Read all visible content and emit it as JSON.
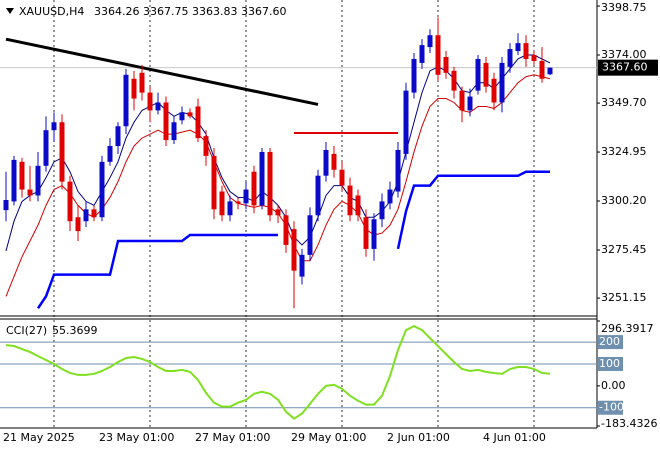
{
  "chart_data": [
    {
      "type": "candlestick",
      "title": "XAUUSD,H4",
      "subtitle": "3364.26 3367.75 3363.83 3367.60",
      "categories": [
        "21 May 2025",
        null,
        null,
        null,
        null,
        null,
        null,
        null,
        null,
        null,
        null,
        null,
        "23 May 01:00",
        null,
        null,
        null,
        null,
        null,
        null,
        null,
        null,
        null,
        null,
        null,
        "27 May 01:00",
        null,
        null,
        null,
        null,
        null,
        null,
        null,
        null,
        null,
        null,
        null,
        "29 May 01:00",
        null,
        null,
        null,
        null,
        null,
        null,
        null,
        null,
        null,
        null,
        null,
        "2 Jun 01:00",
        null,
        null,
        null,
        null,
        null,
        null,
        null,
        null,
        null,
        null,
        null,
        "4 Jun 01:00",
        null,
        null,
        null,
        null,
        null,
        null,
        null,
        null
      ],
      "open": [
        3295.6,
        3300,
        3320,
        3306,
        3303,
        3318,
        3336,
        3340,
        3310,
        3292,
        3290,
        3296,
        3292,
        3320,
        3328,
        3338,
        3362,
        3365,
        3355,
        3346,
        3350,
        3331,
        3341,
        3345,
        3348,
        3333,
        3323,
        3305,
        3293,
        3300,
        3299,
        3315,
        3298,
        3325,
        3296,
        3293,
        3286,
        3262,
        3273,
        3293,
        3313,
        3324,
        3316,
        3308,
        3303,
        3292,
        3276,
        3291,
        3299,
        3305,
        3324,
        3355,
        3370,
        3378,
        3384,
        3373,
        3366,
        3356,
        3346,
        3356,
        3370,
        3362,
        3350,
        3368,
        3376,
        3380,
        3374,
        3371,
        3364.26
      ],
      "high": [
        3315,
        3323,
        3322,
        3318,
        3325,
        3343,
        3345,
        3344,
        3313,
        3298,
        3300,
        3298,
        3323,
        3332,
        3340,
        3367,
        3366,
        3369,
        3358,
        3355,
        3353,
        3343,
        3348,
        3347,
        3352,
        3336,
        3327,
        3308,
        3303,
        3302,
        3310,
        3318,
        3327,
        3327,
        3298,
        3296,
        3290,
        3276,
        3297,
        3316,
        3330,
        3328,
        3320,
        3312,
        3306,
        3296,
        3294,
        3304,
        3310,
        3330,
        3360,
        3375,
        3382,
        3387,
        3393,
        3376,
        3368,
        3358,
        3357,
        3374,
        3373,
        3365,
        3373,
        3380,
        3385,
        3384,
        3376,
        3378,
        3367.75
      ],
      "low": [
        3290,
        3298,
        3302,
        3300,
        3300,
        3315,
        3330,
        3306,
        3285,
        3280,
        3287,
        3290,
        3290,
        3318,
        3324,
        3334,
        3346,
        3351,
        3340,
        3344,
        3328,
        3329,
        3339,
        3342,
        3330,
        3318,
        3291,
        3290,
        3290,
        3296,
        3296,
        3294,
        3296,
        3290,
        3289,
        3274,
        3246,
        3258,
        3270,
        3290,
        3310,
        3312,
        3305,
        3290,
        3290,
        3272,
        3270,
        3287,
        3296,
        3302,
        3321,
        3352,
        3367,
        3375,
        3361,
        3362,
        3352,
        3340,
        3343,
        3354,
        3355,
        3346,
        3345,
        3365,
        3374,
        3368,
        3369,
        3360,
        3363.83
      ],
      "close": [
        3300.7,
        3321,
        3306,
        3303,
        3318,
        3336,
        3340,
        3310,
        3290,
        3285,
        3296,
        3292,
        3320,
        3328,
        3338,
        3364,
        3352,
        3355,
        3346,
        3350,
        3331,
        3340,
        3345,
        3343,
        3332,
        3323,
        3296,
        3293,
        3300,
        3299,
        3306,
        3298,
        3325,
        3293,
        3293,
        3278,
        3265,
        3273,
        3293,
        3313,
        3326,
        3316,
        3308,
        3293,
        3293,
        3276,
        3291,
        3300,
        3306,
        3326,
        3356,
        3372,
        3379,
        3384,
        3364,
        3365,
        3356,
        3346,
        3353,
        3372,
        3358,
        3350,
        3370,
        3377,
        3380,
        3372,
        3371,
        3362,
        3367.6
      ],
      "up_color": "#0a0ac8",
      "down_color": "#e00000",
      "series": [
        {
          "color": "#000080",
          "values": [
            3275,
            3290,
            3300,
            3303,
            3305,
            3312,
            3320,
            3322,
            3315,
            3305,
            3300,
            3298,
            3305,
            3312,
            3320,
            3332,
            3340,
            3346,
            3348,
            3350,
            3346,
            3343,
            3345,
            3344,
            3340,
            3334,
            3322,
            3312,
            3305,
            3302,
            3302,
            3300,
            3305,
            3302,
            3298,
            3292,
            3282,
            3278,
            3282,
            3292,
            3303,
            3308,
            3308,
            3302,
            3300,
            3292,
            3292,
            3295,
            3300,
            3310,
            3325,
            3340,
            3355,
            3366,
            3368,
            3366,
            3362,
            3356,
            3355,
            3360,
            3360,
            3357,
            3362,
            3367,
            3372,
            3374,
            3374,
            3372,
            3370
          ]
        },
        {
          "color": "#d00000",
          "values": [
            3252,
            3262,
            3272,
            3280,
            3288,
            3298,
            3306,
            3308,
            3304,
            3298,
            3294,
            3292,
            3296,
            3302,
            3310,
            3320,
            3328,
            3332,
            3334,
            3336,
            3334,
            3334,
            3335,
            3336,
            3334,
            3330,
            3320,
            3310,
            3302,
            3299,
            3298,
            3297,
            3298,
            3297,
            3294,
            3288,
            3278,
            3270,
            3270,
            3278,
            3288,
            3296,
            3300,
            3298,
            3294,
            3286,
            3283,
            3284,
            3288,
            3296,
            3310,
            3325,
            3338,
            3348,
            3352,
            3352,
            3350,
            3346,
            3345,
            3348,
            3348,
            3347,
            3350,
            3355,
            3360,
            3363,
            3364,
            3363,
            3362
          ]
        },
        {
          "color": "#0000ff",
          "values": [
            null,
            null,
            null,
            null,
            3246,
            3252,
            3263,
            3263,
            3263,
            3263,
            3263,
            3263,
            3263,
            3263,
            3280,
            3280,
            3280,
            3280,
            3280,
            3280,
            3280,
            3280,
            3280,
            3283,
            3283,
            3283,
            3283,
            3283,
            3283,
            3283,
            3283,
            3283,
            3283,
            3283,
            3283,
            null,
            null,
            null,
            null,
            null,
            null,
            null,
            null,
            null,
            null,
            null,
            null,
            null,
            null,
            3276,
            3295,
            3308,
            3308,
            3308,
            3313,
            3313,
            3313,
            3313,
            3313,
            3313,
            3313,
            3313,
            3313,
            3313,
            3313,
            3315,
            3315,
            3315,
            3315
          ]
        }
      ],
      "lines": [
        {
          "color": "#000000",
          "x": [
            0,
            39
          ],
          "values": [
            3382,
            3349
          ]
        },
        {
          "color": "#e00000",
          "x": [
            36,
            49
          ],
          "values": [
            3334.6,
            3334.6
          ]
        }
      ],
      "last_price": {
        "value": 3367.6,
        "label": "3367.60"
      },
      "ylim": [
        3243.6,
        3401.8
      ],
      "yticks": [
        3398.75,
        {
          "value": 3374,
          "label": "3374.00"
        },
        {
          "value": 3349.7,
          "label": "3349.70"
        },
        3324.95,
        {
          "value": 3300.2,
          "label": "3300.20"
        },
        3275.45,
        3251.15
      ]
    },
    {
      "type": "line",
      "title": "CCI(27)",
      "series": [
        {
          "color": "#7fe020",
          "values": [
            186,
            182,
            168,
            155,
            136,
            118,
            100,
            77,
            59,
            50,
            50,
            55,
            68,
            86,
            109,
            127,
            132,
            123,
            109,
            86,
            68,
            68,
            73,
            64,
            27,
            -32,
            -77,
            -95,
            -95,
            -77,
            -64,
            -36,
            -27,
            -36,
            -64,
            -118,
            -150,
            -127,
            -82,
            -36,
            0,
            5,
            -14,
            -45,
            -68,
            -86,
            -86,
            -45,
            45,
            164,
            255,
            273,
            255,
            218,
            182,
            145,
            109,
            77,
            68,
            73,
            64,
            59,
            55,
            77,
            86,
            86,
            77,
            59,
            55.3699
          ]
        }
      ],
      "ylim": [
        -183.4326,
        296.3917
      ],
      "yticks": [
        296.3917,
        {
          "value": 0,
          "label": "0.00"
        },
        -183.4326
      ],
      "levels": [
        200,
        100,
        -100
      ],
      "level_color": "#6f8fae"
    }
  ]
}
